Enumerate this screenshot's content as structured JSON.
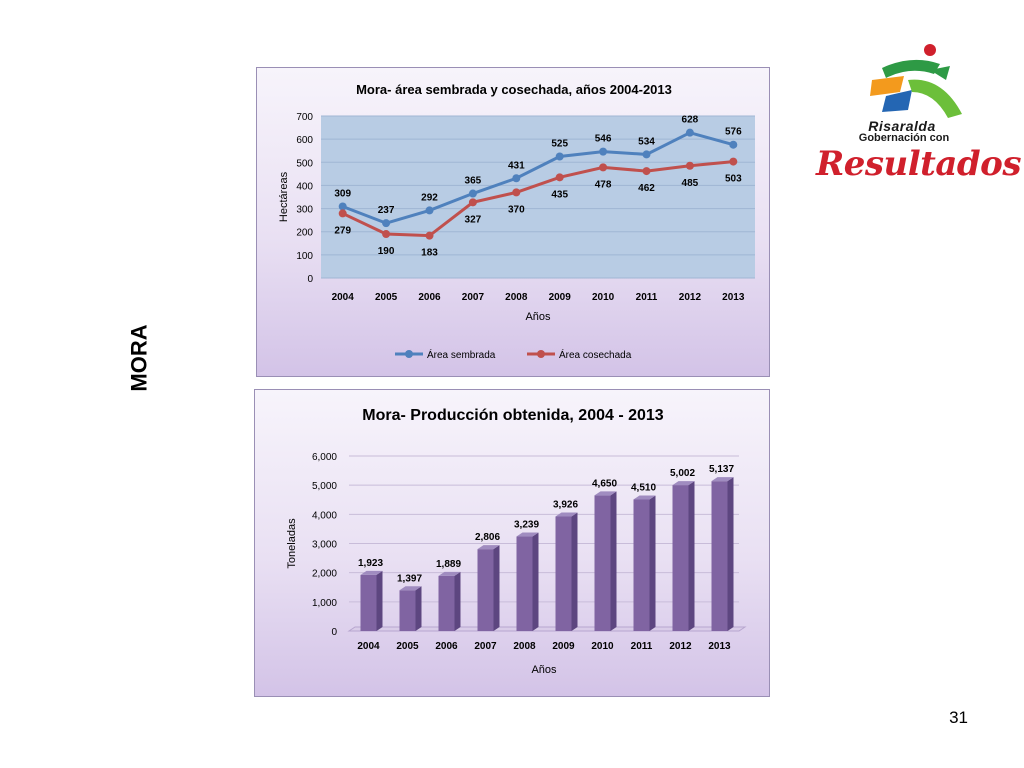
{
  "side_label": "MORA",
  "page_number": "31",
  "logo": {
    "line1": "Risaralda",
    "line2": "Gobernación con",
    "line3": "Resultados"
  },
  "colors": {
    "sembrada": "#4f81bd",
    "cosechada": "#c0504d",
    "bar": "#8064a2",
    "plot_bg": "#b8cce4"
  },
  "chart_data": [
    {
      "type": "line",
      "title": "Mora- área sembrada y cosechada, años 2004-2013",
      "xlabel": "Años",
      "ylabel": "Hectáreas",
      "categories": [
        "2004",
        "2005",
        "2006",
        "2007",
        "2008",
        "2009",
        "2010",
        "2011",
        "2012",
        "2013"
      ],
      "ylim": [
        0,
        700
      ],
      "yticks": [
        "0",
        "100",
        "200",
        "300",
        "400",
        "500",
        "600",
        "700"
      ],
      "grid": true,
      "legend": "bottom",
      "series": [
        {
          "name": "Área sembrada",
          "values": [
            309,
            237,
            292,
            365,
            431,
            525,
            546,
            534,
            628,
            576
          ]
        },
        {
          "name": "Área cosechada",
          "values": [
            279,
            190,
            183,
            327,
            370,
            435,
            478,
            462,
            485,
            503
          ]
        }
      ]
    },
    {
      "type": "bar",
      "title": "Mora- Producción obtenida, 2004 - 2013",
      "xlabel": "Años",
      "ylabel": "Toneladas",
      "categories": [
        "2004",
        "2005",
        "2006",
        "2007",
        "2008",
        "2009",
        "2010",
        "2011",
        "2012",
        "2013"
      ],
      "ylim": [
        0,
        6000
      ],
      "yticks": [
        "0",
        "1,000",
        "2,000",
        "3,000",
        "4,000",
        "5,000",
        "6,000"
      ],
      "grid": true,
      "values": [
        1923,
        1397,
        1889,
        2806,
        3239,
        3926,
        4650,
        4510,
        5002,
        5137
      ],
      "value_labels": [
        "1,923",
        "1,397",
        "1,889",
        "2,806",
        "3,239",
        "3,926",
        "4,650",
        "4,510",
        "5,002",
        "5,137"
      ]
    }
  ]
}
